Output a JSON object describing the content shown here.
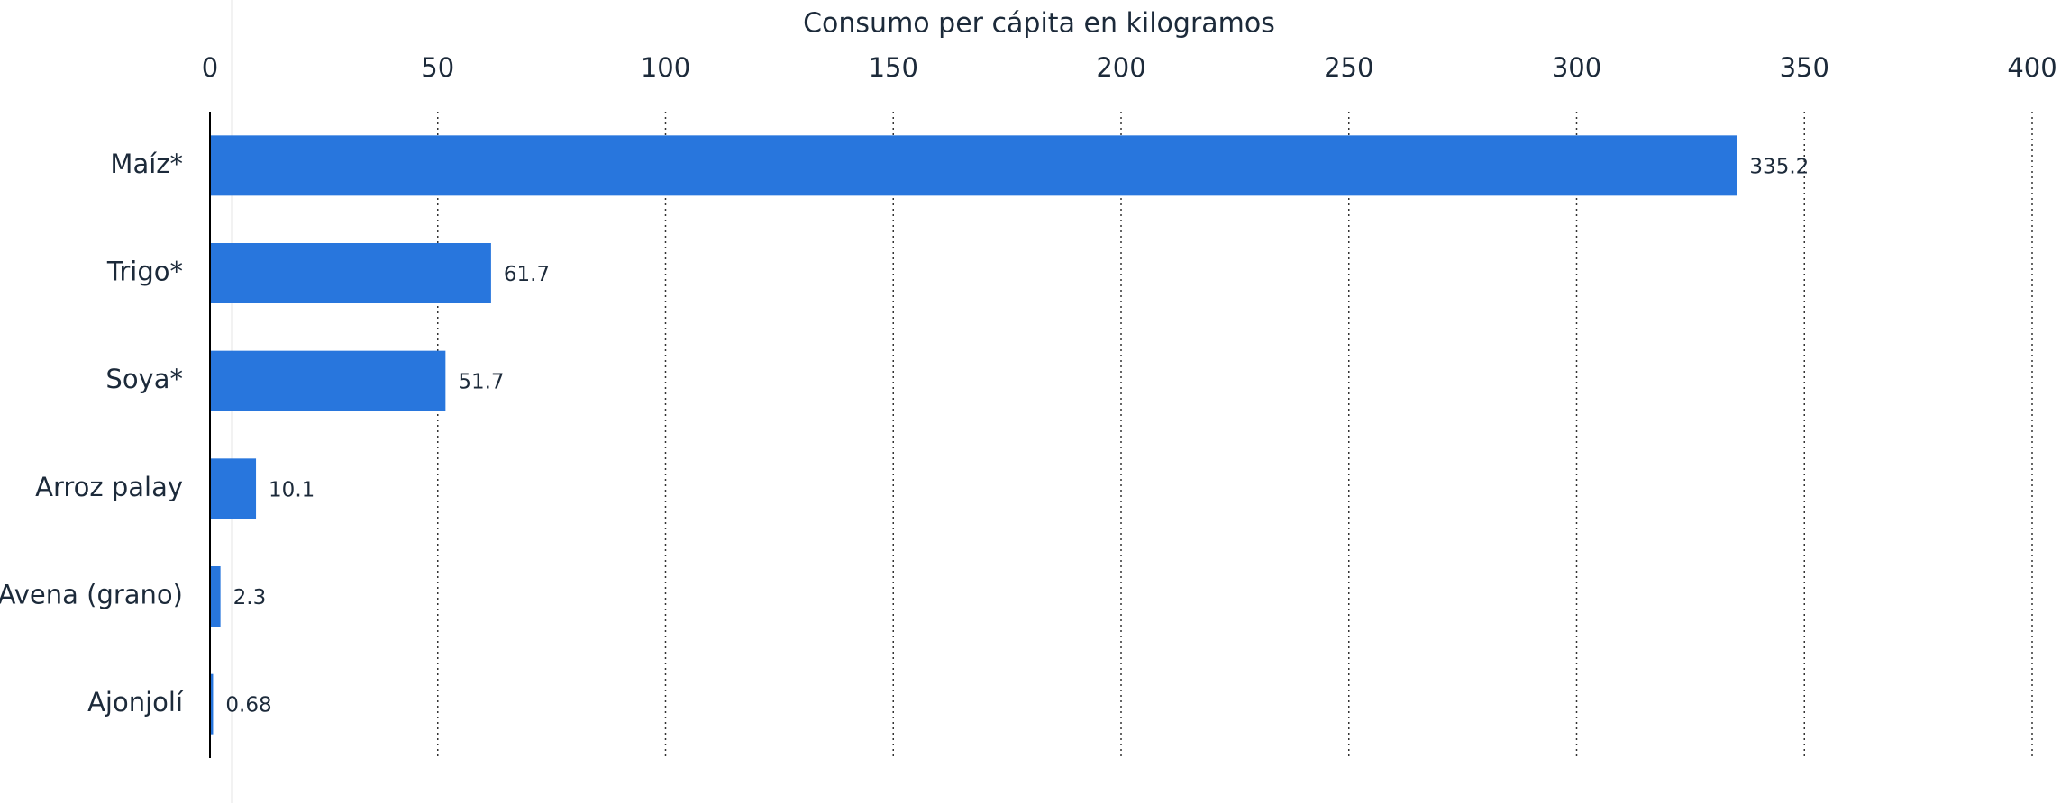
{
  "chart_data": {
    "type": "hbar",
    "x_label": "Consumo per cápita en kilogramos",
    "categories": [
      "Maíz*",
      "Trigo*",
      "Soya*",
      "Arroz palay",
      "Avena (grano)",
      "Ajonjolí"
    ],
    "values": [
      335.2,
      61.7,
      51.7,
      10.1,
      2.3,
      0.68
    ],
    "color": "#2876dd",
    "xlim": [
      0,
      400
    ],
    "xticks": [
      0,
      50,
      100,
      150,
      200,
      250,
      300,
      350,
      400
    ],
    "grid": true
  }
}
